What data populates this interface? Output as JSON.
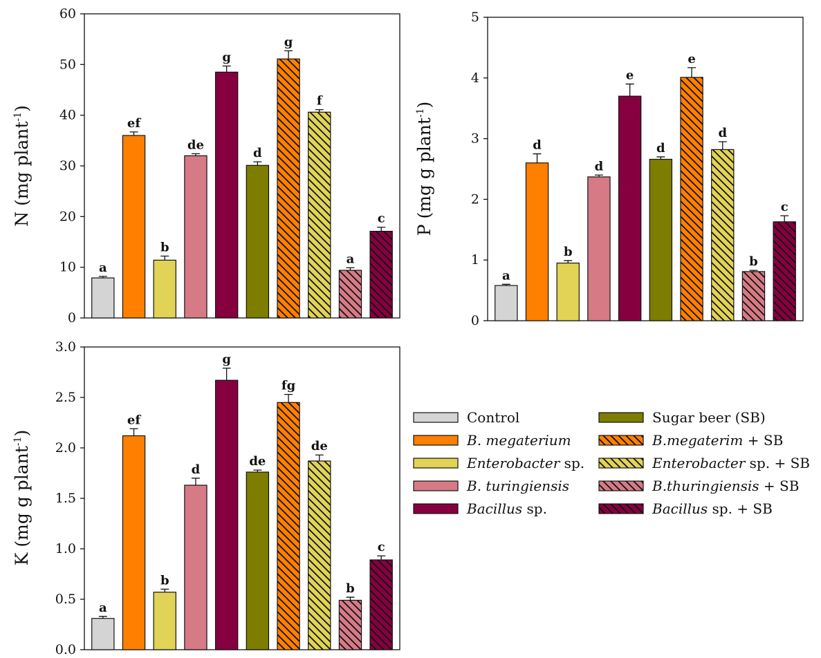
{
  "legend": {
    "items": [
      {
        "label": "Control",
        "italic_part": "",
        "plain_part": "Control",
        "color": "#d4d4d4",
        "hatched": false
      },
      {
        "label": "B. megaterium",
        "italic_part": "B. megaterium",
        "plain_part": "",
        "color": "#ff7f00",
        "hatched": false
      },
      {
        "label": "Enterobacter sp.",
        "italic_part": "Enterobacter",
        "plain_part": " sp.",
        "color": "#e0d356",
        "hatched": false
      },
      {
        "label": "B. turingiensis",
        "italic_part": "B. turingiensis",
        "plain_part": "",
        "color": "#d67a86",
        "hatched": false
      },
      {
        "label": "Bacillus sp.",
        "italic_part": "Bacillus",
        "plain_part": " sp.",
        "color": "#860040",
        "hatched": false
      },
      {
        "label": "Sugar beer (SB)",
        "italic_part": "",
        "plain_part": "Sugar beer (SB)",
        "color": "#7d7d00",
        "hatched": false
      },
      {
        "label": "B.megaterim + SB",
        "italic_part": "B.megaterim",
        "plain_part": " + SB",
        "color": "#ff7f00",
        "hatched": true
      },
      {
        "label": "Enterobacter sp. + SB",
        "italic_part": "Enterobacter",
        "plain_part": " sp. + SB",
        "color": "#e0d356",
        "hatched": true
      },
      {
        "label": "B.thuringiensis + SB",
        "italic_part": "B.thuringiensis",
        "plain_part": " + SB",
        "color": "#d67a86",
        "hatched": true
      },
      {
        "label": "Bacillus sp. + SB",
        "italic_part": "Bacillus",
        "plain_part": " sp. + SB",
        "color": "#860040",
        "hatched": true
      }
    ]
  },
  "chart_data": [
    {
      "type": "bar",
      "id": "N",
      "ylabel_main": "N (mg plant",
      "ylabel_sup": "-1",
      "ylabel_close": ")",
      "ylim": [
        0,
        60
      ],
      "yticks": [
        "0",
        "10",
        "20",
        "30",
        "40",
        "50",
        "60"
      ],
      "values": [
        7.9,
        36.0,
        11.4,
        32.0,
        48.5,
        30.1,
        51.1,
        40.6,
        9.4,
        17.1
      ],
      "errors": [
        0.3,
        0.7,
        0.8,
        0.4,
        1.2,
        0.7,
        1.6,
        0.5,
        0.5,
        0.8
      ],
      "letters": [
        "a",
        "ef",
        "b",
        "de",
        "g",
        "d",
        "g",
        "f",
        "a",
        "c"
      ]
    },
    {
      "type": "bar",
      "id": "P",
      "ylabel_main": "P (mg g plant",
      "ylabel_sup": "-1",
      "ylabel_close": ")",
      "ylim": [
        0,
        5
      ],
      "yticks": [
        "0",
        "1",
        "2",
        "3",
        "4",
        "5"
      ],
      "values": [
        0.58,
        2.6,
        0.95,
        2.37,
        3.7,
        2.66,
        4.01,
        2.82,
        0.81,
        1.63
      ],
      "errors": [
        0.02,
        0.15,
        0.04,
        0.03,
        0.2,
        0.04,
        0.16,
        0.13,
        0.02,
        0.1
      ],
      "letters": [
        "a",
        "d",
        "b",
        "d",
        "e",
        "d",
        "e",
        "d",
        "b",
        "c"
      ]
    },
    {
      "type": "bar",
      "id": "K",
      "ylabel_main": "K (mg g plant",
      "ylabel_sup": "-1",
      "ylabel_close": ")",
      "ylim": [
        0,
        3.0
      ],
      "yticks": [
        "0.0",
        "0.5",
        "1.0",
        "1.5",
        "2.0",
        "2.5",
        "3.0"
      ],
      "values": [
        0.31,
        2.12,
        0.57,
        1.63,
        2.67,
        1.76,
        2.45,
        1.87,
        0.49,
        0.89
      ],
      "errors": [
        0.02,
        0.07,
        0.03,
        0.07,
        0.12,
        0.02,
        0.08,
        0.06,
        0.03,
        0.04
      ],
      "letters": [
        "a",
        "ef",
        "b",
        "d",
        "g",
        "de",
        "fg",
        "de",
        "b",
        "c"
      ]
    }
  ]
}
